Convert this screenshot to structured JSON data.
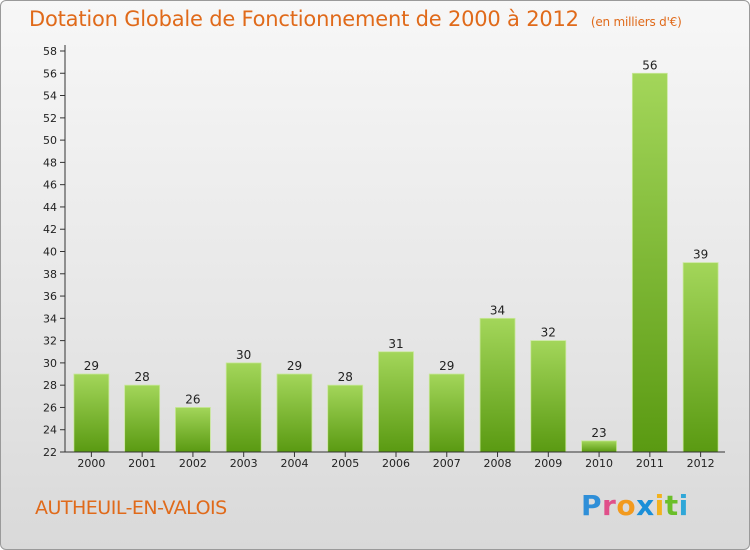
{
  "header": {
    "title": "Dotation Globale de Fonctionnement de 2000 à 2012",
    "unit": "(en milliers d'€)"
  },
  "footer": {
    "commune": "AUTHEUIL-EN-VALOIS",
    "brand": [
      "P",
      "r",
      "o",
      "x",
      "i",
      "t",
      "i"
    ]
  },
  "chart_data": {
    "type": "bar",
    "title": "Dotation Globale de Fonctionnement de 2000 à 2012",
    "subtitle": "(en milliers d'€)",
    "categories": [
      "2000",
      "2001",
      "2002",
      "2003",
      "2004",
      "2005",
      "2006",
      "2007",
      "2008",
      "2009",
      "2010",
      "2011",
      "2012"
    ],
    "values": [
      29,
      28,
      26,
      30,
      29,
      28,
      31,
      29,
      34,
      32,
      23,
      56,
      39
    ],
    "ylim": [
      22,
      58
    ],
    "yticks": [
      22,
      24,
      26,
      28,
      30,
      32,
      34,
      36,
      38,
      40,
      42,
      44,
      46,
      48,
      50,
      52,
      54,
      56,
      58
    ],
    "grid": false,
    "colors": {
      "bar_top": "#9ad24a",
      "bar_bottom": "#5e9e14",
      "axis": "#333333",
      "label": "#222222"
    }
  }
}
